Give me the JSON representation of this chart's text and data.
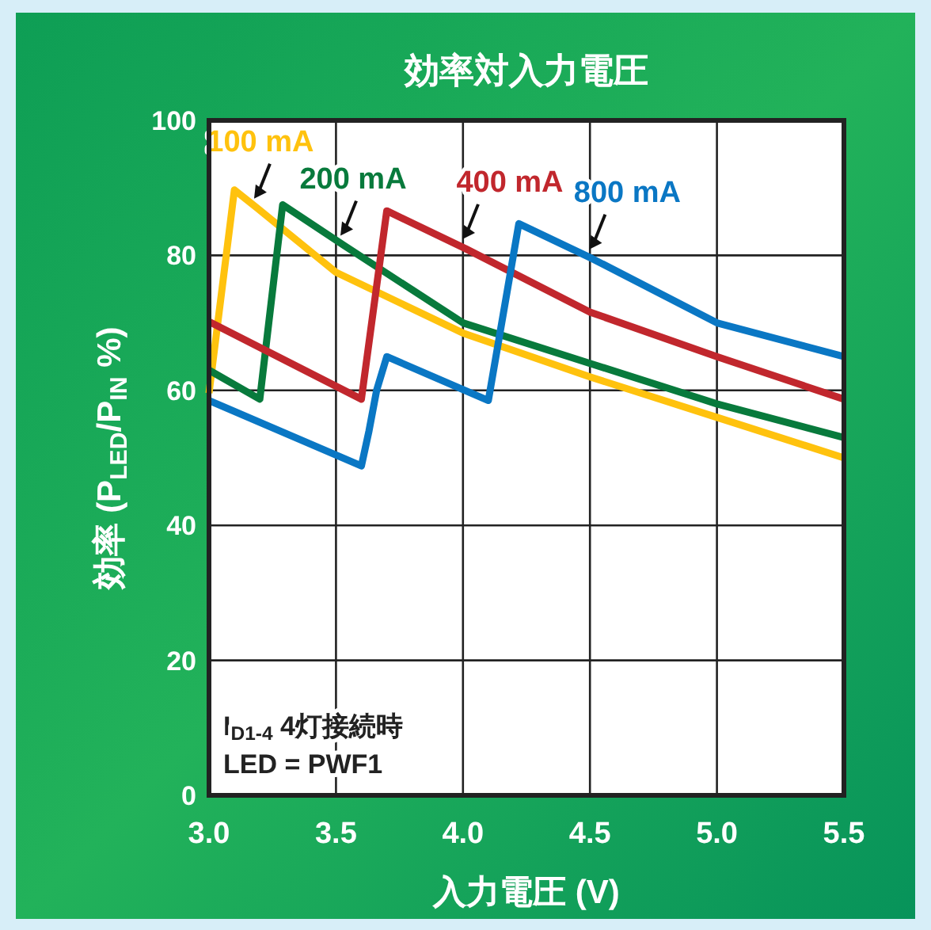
{
  "chart_data": {
    "type": "line",
    "title": "効率対入力電圧",
    "xlabel": "入力電圧 (V)",
    "ylabel": "効率 (P$_{LED}$/P$_{IN}$ %)",
    "xlim": [
      3.0,
      5.5
    ],
    "ylim": [
      0,
      100
    ],
    "xticks": [
      {
        "value": 3.0,
        "label": "3.0"
      },
      {
        "value": 3.5,
        "label": "3.5"
      },
      {
        "value": 4.0,
        "label": "4.0"
      },
      {
        "value": 4.5,
        "label": "4.5"
      },
      {
        "value": 5.0,
        "label": "5.0"
      },
      {
        "value": 5.5,
        "label": "5.5"
      }
    ],
    "yticks": [
      0,
      20,
      40,
      60,
      80,
      100
    ],
    "grid": true,
    "series": [
      {
        "name": "100 mA",
        "color": "#ffc20e",
        "x": [
          3.0,
          3.1,
          3.19,
          3.5,
          4.0,
          4.5,
          5.0,
          5.5
        ],
        "values": [
          59.6,
          89.7,
          87,
          77.5,
          68.5,
          62,
          56,
          50
        ]
      },
      {
        "name": "200 mA",
        "color": "#087a3c",
        "x": [
          3.0,
          3.2,
          3.29,
          3.53,
          4.0,
          4.5,
          5.0,
          5.5
        ],
        "values": [
          63,
          58.7,
          87.5,
          81.5,
          70,
          64,
          58,
          53
        ]
      },
      {
        "name": "400 mA",
        "color": "#c1272d",
        "x": [
          3.0,
          3.6,
          3.7,
          4.01,
          4.5,
          5.0,
          5.5
        ],
        "values": [
          70.2,
          58.7,
          86.6,
          81,
          71.6,
          65,
          58.7
        ]
      },
      {
        "name": "800 mA",
        "color": "#0a77c4",
        "x": [
          3.0,
          3.6,
          3.63,
          3.66,
          3.7,
          4.1,
          4.22,
          4.51,
          5.0,
          5.5
        ],
        "values": [
          58.5,
          48.8,
          54,
          60,
          65,
          58.5,
          84.7,
          79.5,
          70,
          65
        ]
      }
    ],
    "annotations": [
      "I$_{D1-4}$ 4灯接続時",
      "LED = PWF1"
    ]
  }
}
